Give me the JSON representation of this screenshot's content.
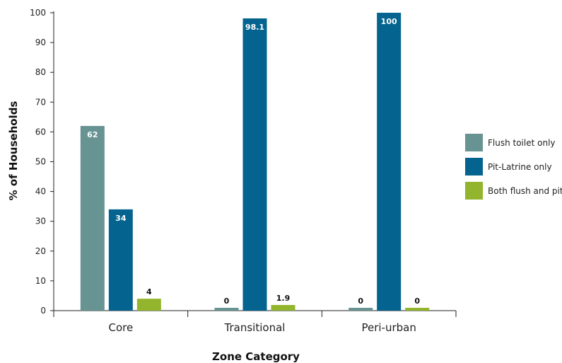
{
  "chart_data": {
    "type": "bar",
    "categories": [
      "Core",
      "Transitional",
      "Peri-urban"
    ],
    "series": [
      {
        "name": "Flush toilet only",
        "values": [
          62,
          0,
          0
        ],
        "color": "#679392"
      },
      {
        "name": "Pit-Latrine only",
        "values": [
          34,
          98.1,
          100
        ],
        "color": "#05648f"
      },
      {
        "name": "Both flush and pit",
        "values": [
          4,
          1.9,
          0
        ],
        "color": "#93b42d"
      }
    ],
    "value_labels": [
      [
        "62",
        "0",
        "0"
      ],
      [
        "34",
        "98.1",
        "100"
      ],
      [
        "4",
        "1.9",
        "0"
      ]
    ],
    "xlabel": "Zone Category",
    "ylabel": "% of Households",
    "ylim": [
      0,
      100
    ],
    "yticks": [
      "0",
      "10",
      "20",
      "30",
      "40",
      "50",
      "60",
      "70",
      "80",
      "90",
      "100"
    ],
    "grid": false,
    "legend_position": "right"
  }
}
